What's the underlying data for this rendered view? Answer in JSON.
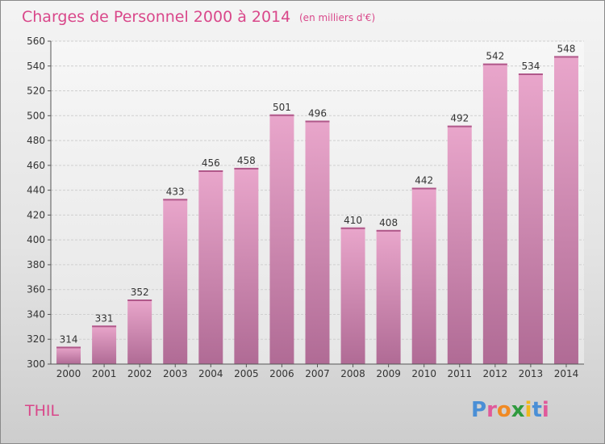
{
  "chart_data": {
    "type": "bar",
    "title": "Charges de Personnel 2000 à 2014",
    "subtitle": "(en milliers d'€)",
    "categories": [
      "2000",
      "2001",
      "2002",
      "2003",
      "2004",
      "2005",
      "2006",
      "2007",
      "2008",
      "2009",
      "2010",
      "2011",
      "2012",
      "2013",
      "2014"
    ],
    "values": [
      314,
      331,
      352,
      433,
      456,
      458,
      501,
      496,
      410,
      408,
      442,
      492,
      542,
      534,
      548
    ],
    "ylim": [
      300,
      560
    ],
    "yticks": [
      300,
      320,
      340,
      360,
      380,
      400,
      420,
      440,
      460,
      480,
      500,
      520,
      540,
      560
    ],
    "grid": true,
    "xlabel": "",
    "ylabel": "",
    "bar_color": "#d27aaa"
  },
  "commune": "THIL",
  "logo": {
    "letters": [
      "P",
      "r",
      "o",
      "x",
      "i",
      "t",
      "i"
    ],
    "colors": [
      "#4a8fd6",
      "#e05a9b",
      "#f08a24",
      "#2f9a3e",
      "#f0b81e",
      "#4a8fd6",
      "#e05a9b"
    ]
  }
}
